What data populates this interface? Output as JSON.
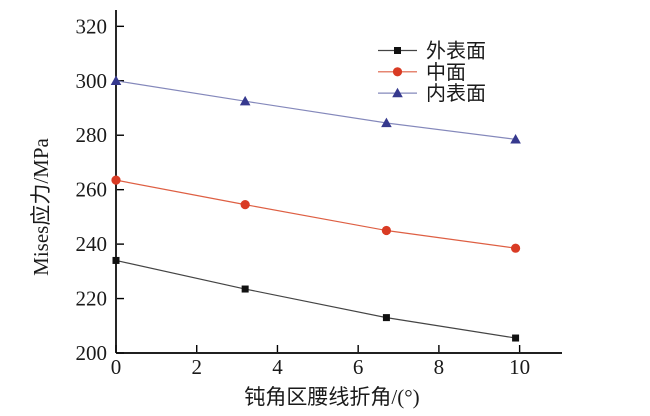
{
  "chart_data": {
    "type": "line",
    "title": "",
    "xlabel": "钝角区腰线折角/(°)",
    "ylabel": "Mises应力/MPa",
    "xlim": [
      0,
      11.05
    ],
    "ylim": [
      200,
      326
    ],
    "xticks": [
      0,
      2,
      4,
      6,
      8,
      10
    ],
    "yticks": [
      200,
      220,
      240,
      260,
      280,
      300,
      320
    ],
    "grid": false,
    "legend_position": "upper-right-inside",
    "x": [
      0,
      3.2,
      6.7,
      9.9
    ],
    "series": [
      {
        "key": "outer-surface",
        "name": "外表面",
        "marker": "square",
        "marker_color": "#111111",
        "line_color": "#444444",
        "values": [
          234,
          223.5,
          213,
          205.5
        ]
      },
      {
        "key": "mid-surface",
        "name": "中面",
        "marker": "circle",
        "marker_color": "#d93b24",
        "line_color": "#de5f43",
        "values": [
          263.5,
          254.5,
          245,
          238.5
        ]
      },
      {
        "key": "inner-surface",
        "name": "内表面",
        "marker": "triangle",
        "marker_color": "#36398e",
        "line_color": "#8488bb",
        "values": [
          300,
          292.5,
          284.5,
          278.5
        ]
      }
    ],
    "axis_color": "#000000",
    "text_color": "#1a1a1a"
  }
}
